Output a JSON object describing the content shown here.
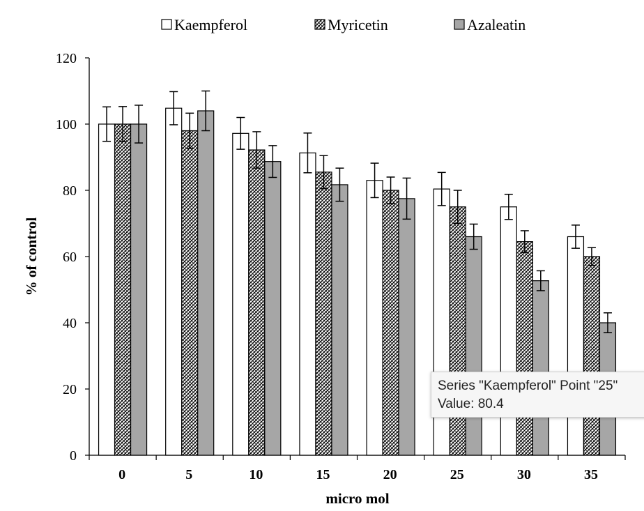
{
  "chart_data": {
    "type": "bar",
    "title": "",
    "xlabel": "micro mol",
    "ylabel": "% of control",
    "ylim": [
      0,
      120
    ],
    "yticks": [
      0,
      20,
      40,
      60,
      80,
      100,
      120
    ],
    "categories": [
      "0",
      "5",
      "10",
      "15",
      "20",
      "25",
      "30",
      "35"
    ],
    "legend_position": "top",
    "series": [
      {
        "name": "Kaempferol",
        "pattern": "white",
        "values": [
          100,
          104.8,
          97.2,
          91.3,
          83,
          80.4,
          75,
          66
        ],
        "errors": [
          5.2,
          5,
          4.8,
          6,
          5.2,
          5,
          3.8,
          3.5
        ]
      },
      {
        "name": "Myricetin",
        "pattern": "hatch",
        "values": [
          100,
          98,
          92.2,
          85.5,
          80,
          75,
          64.5,
          60
        ],
        "errors": [
          5.3,
          5.3,
          5.5,
          5,
          4,
          5,
          3.3,
          2.7
        ]
      },
      {
        "name": "Azaleatin",
        "pattern": "gray",
        "values": [
          100,
          104,
          88.7,
          81.7,
          77.5,
          66,
          52.7,
          40
        ],
        "errors": [
          5.7,
          6,
          4.8,
          5,
          6.2,
          3.8,
          3,
          3
        ]
      }
    ],
    "colors": {
      "gray_fill": "#a6a6a6",
      "stroke": "#000000",
      "white_fill": "#ffffff"
    }
  },
  "tooltip": {
    "line1": "Series \"Kaempferol\" Point \"25\"",
    "line2": "Value: 80.4"
  }
}
